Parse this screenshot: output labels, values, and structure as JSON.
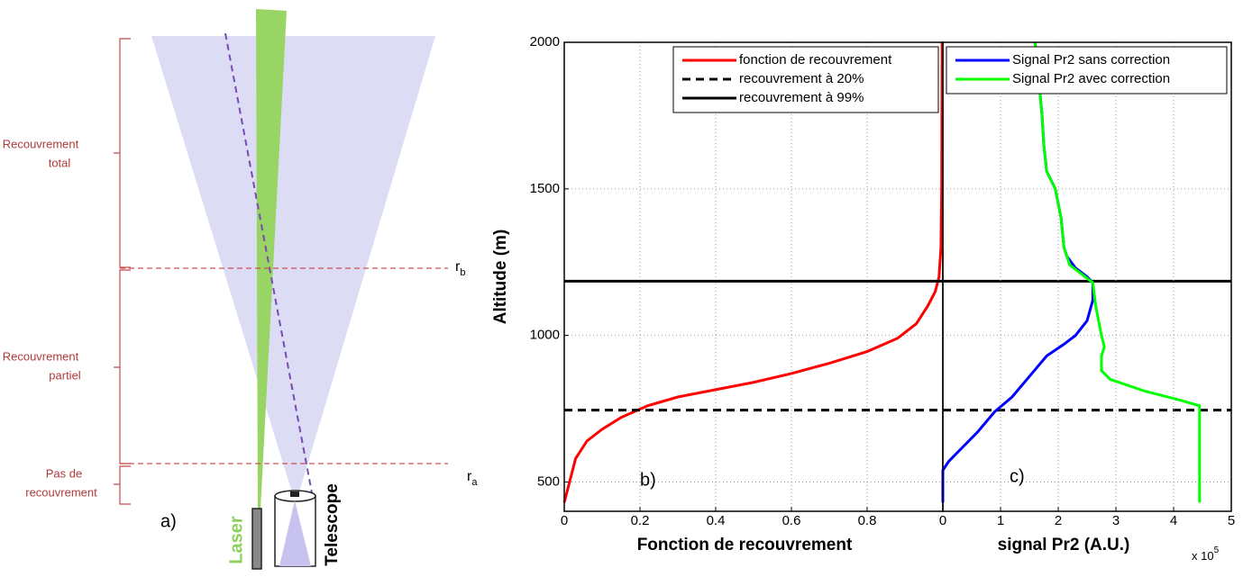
{
  "diagram": {
    "zones": [
      {
        "label": [
          "Recouvrement",
          "total"
        ]
      },
      {
        "label": [
          "Recouvrement",
          "partiel"
        ]
      },
      {
        "label": [
          "Pas de",
          "recouvrement"
        ]
      }
    ],
    "levels": [
      {
        "text": "r",
        "sub": "b"
      },
      {
        "text": "r",
        "sub": "a"
      }
    ],
    "panel_label": "a)",
    "laser_label": "Laser",
    "telescope_label": "Telescope"
  },
  "chart_data": [
    {
      "type": "line",
      "xlabel": "Fonction de recouvrement",
      "ylabel": "Altitude (m)",
      "panel_label": "b)",
      "xlim": [
        0,
        1
      ],
      "ylim": [
        400,
        2000
      ],
      "xticks": [
        0,
        0.2,
        0.4,
        0.6,
        0.8
      ],
      "yticks": [
        500,
        1000,
        1500,
        2000
      ],
      "grid": true,
      "series": [
        {
          "name": "fonction de recouvrement",
          "color": "#ff0000",
          "x": [
            0,
            0.01,
            0.03,
            0.06,
            0.1,
            0.15,
            0.22,
            0.3,
            0.4,
            0.5,
            0.6,
            0.7,
            0.8,
            0.88,
            0.93,
            0.96,
            0.98,
            0.99,
            0.995,
            0.997,
            0.998
          ],
          "y": [
            430,
            480,
            580,
            640,
            680,
            720,
            760,
            790,
            815,
            840,
            870,
            905,
            945,
            990,
            1040,
            1100,
            1150,
            1200,
            1300,
            1500,
            2000
          ]
        }
      ],
      "hlines": [
        {
          "name": "recouvrement à 20%",
          "value": 745,
          "color": "#000000",
          "style": "dashed"
        },
        {
          "name": "recouvrement à 99%",
          "value": 1185,
          "color": "#000000",
          "style": "solid"
        }
      ]
    },
    {
      "type": "line",
      "xlabel": "signal Pr2 (A.U.)",
      "panel_label": "c)",
      "x_multiplier": {
        "base": "x 10",
        "exponent": "5"
      },
      "xlim": [
        0,
        5
      ],
      "ylim": [
        400,
        2000
      ],
      "xticks": [
        0,
        1,
        2,
        3,
        4,
        5
      ],
      "grid": true,
      "series": [
        {
          "name": "Signal Pr2 sans correction",
          "color": "#0000ff",
          "x": [
            0,
            0,
            0.1,
            0.3,
            0.6,
            0.9,
            1.2,
            1.5,
            1.8,
            2.1,
            2.3,
            2.5,
            2.6,
            2.6,
            2.5,
            2.3,
            2.15,
            2.1,
            2.05,
            1.95,
            1.8,
            1.75,
            1.72,
            1.65,
            1.6
          ],
          "y": [
            430,
            540,
            570,
            610,
            670,
            740,
            790,
            860,
            930,
            970,
            1000,
            1050,
            1120,
            1180,
            1200,
            1230,
            1270,
            1300,
            1400,
            1500,
            1560,
            1650,
            1750,
            1900,
            2000
          ]
        },
        {
          "name": "Signal Pr2 avec correction",
          "color": "#00ff00",
          "x": [
            4.45,
            4.45,
            4.1,
            3.5,
            2.9,
            2.75,
            2.75,
            2.8,
            2.75,
            2.65,
            2.6,
            2.4,
            2.2,
            2.1,
            2.05,
            1.95,
            1.8,
            1.75,
            1.72,
            1.65,
            1.6
          ],
          "y": [
            430,
            760,
            780,
            810,
            850,
            880,
            930,
            960,
            1000,
            1100,
            1180,
            1210,
            1240,
            1300,
            1400,
            1500,
            1560,
            1650,
            1750,
            1900,
            2000
          ]
        }
      ]
    }
  ]
}
